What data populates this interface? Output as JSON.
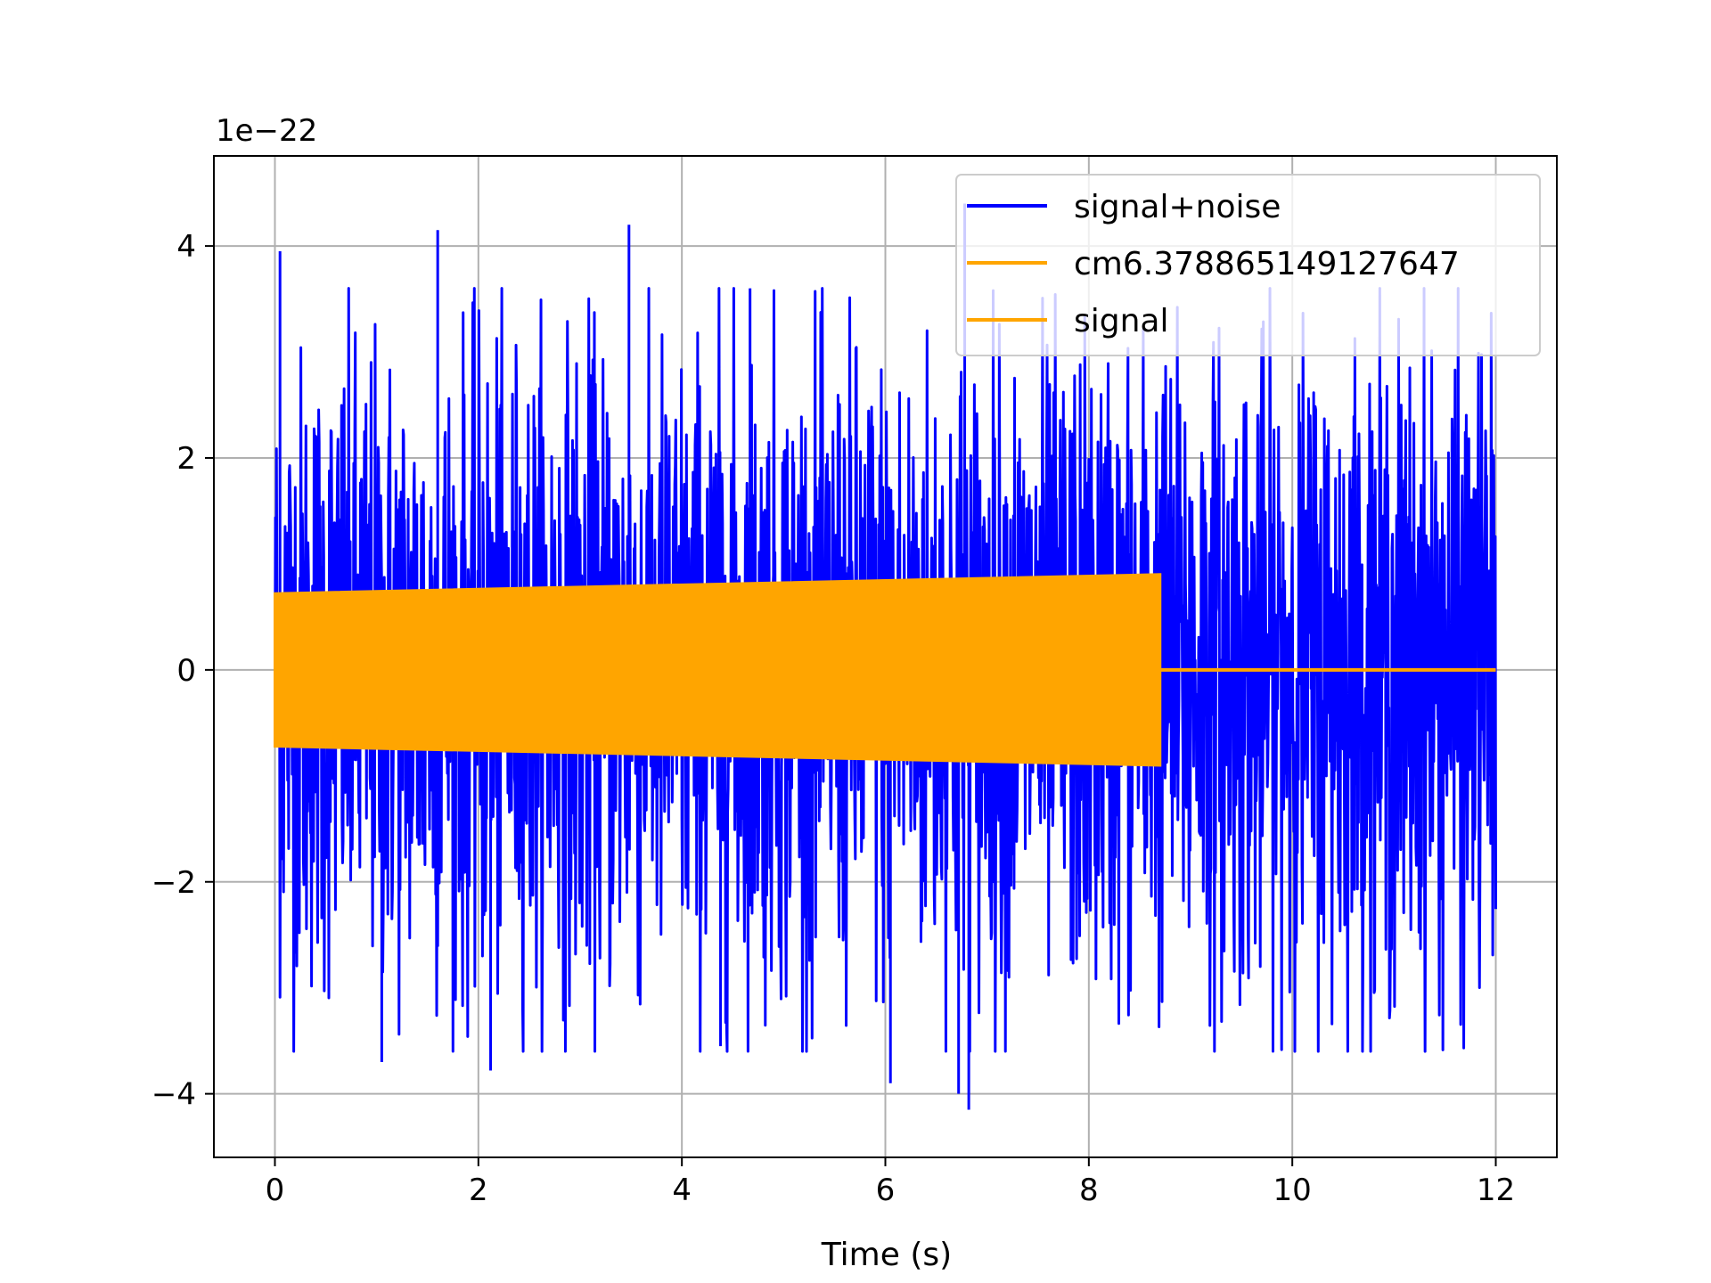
{
  "chart_data": {
    "type": "line",
    "title": "",
    "xlabel": "Time (s)",
    "ylabel": "",
    "y_offset_text": "1e−22",
    "y_scale": 1e-22,
    "xlim": [
      -0.6,
      12.6
    ],
    "ylim": [
      -4.6,
      4.85
    ],
    "x_ticks": [
      0,
      2,
      4,
      6,
      8,
      10,
      12
    ],
    "x_tick_labels": [
      "0",
      "2",
      "4",
      "6",
      "8",
      "10",
      "12"
    ],
    "y_ticks": [
      -4,
      -2,
      0,
      2,
      4
    ],
    "y_tick_labels": [
      "−4",
      "−2",
      "0",
      "2",
      "4"
    ],
    "grid": true,
    "legend_position": "top-right",
    "series": [
      {
        "name": "signal+noise",
        "color": "#0000ff",
        "x_range": [
          0,
          12
        ],
        "description_values": {
          "typical_amplitude": 2.0,
          "peak_max": 4.4,
          "peak_min": -4.15
        },
        "peaks": [
          {
            "x": 0.05,
            "y": 3.95
          },
          {
            "x": 1.6,
            "y": 4.15
          },
          {
            "x": 3.48,
            "y": 4.2
          },
          {
            "x": 6.78,
            "y": 4.4
          },
          {
            "x": 4.67,
            "y": 3.6
          },
          {
            "x": 1.05,
            "y": -3.7
          },
          {
            "x": 2.12,
            "y": -3.78
          },
          {
            "x": 6.05,
            "y": -3.9
          },
          {
            "x": 6.72,
            "y": -4.0
          },
          {
            "x": 6.82,
            "y": -4.15
          },
          {
            "x": 4.38,
            "y": -3.55
          }
        ]
      },
      {
        "name": "cm6.378865149127647",
        "color": "#ffa500",
        "x_range": [
          0,
          12
        ],
        "values": []
      },
      {
        "name": "signal",
        "color": "#ffa500",
        "x_range": [
          0,
          12
        ],
        "envelope": {
          "t_start": 0,
          "t_end": 8.7,
          "amp_start": 0.72,
          "amp_end": 0.9
        },
        "after_end_value": 0
      }
    ]
  }
}
